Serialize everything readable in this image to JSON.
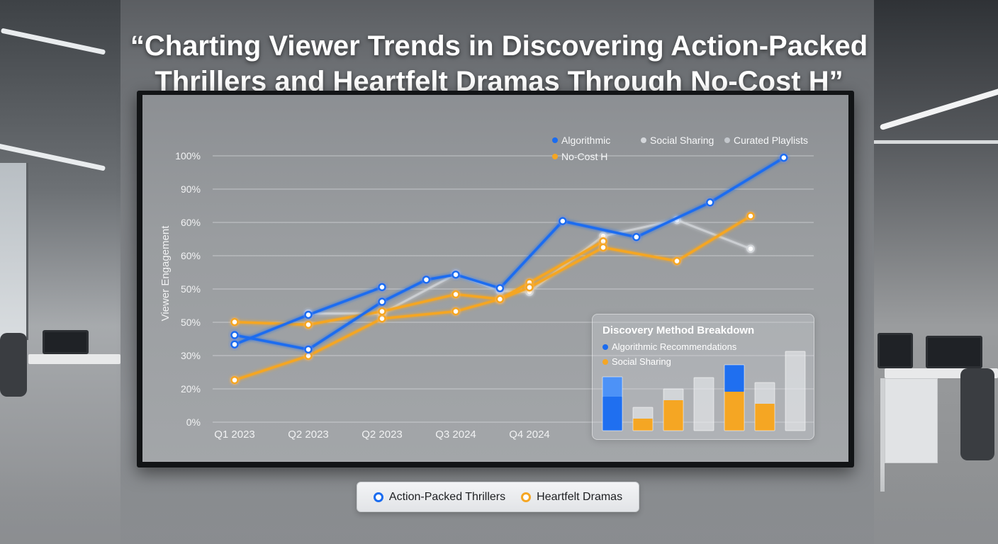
{
  "title_line1": "“Charting Viewer Trends in Discovering Action-Packed",
  "title_line2": "Thrillers and Heartfelt Dramas Through No-Cost H”",
  "colors": {
    "blue": "#1a6cf0",
    "orange": "#f5a623",
    "gray": "#d4d7db",
    "light_gray": "#c3c7cc"
  },
  "chart_data": {
    "type": "line",
    "ylabel": "Viewer Engagement",
    "ytick_labels": [
      "0%",
      "20%",
      "30%",
      "50%",
      "50%",
      "60%",
      "60%",
      "90%",
      "100%"
    ],
    "xtick_labels": [
      "Q1 2023",
      "Q2 2023",
      "Q2 2023",
      "Q3 2024",
      "Q4 2024"
    ],
    "grid": true,
    "legend_top": [
      "Algorithmic",
      "Social Sharing",
      "Curated Playlists",
      "No-Cost H"
    ],
    "series": [
      {
        "name": "Algorithmic",
        "color": "#1a6cf0",
        "points": [
          [
            0,
            32.7
          ],
          [
            1,
            27.3
          ],
          [
            2,
            45.2
          ],
          [
            2.6,
            53.5
          ],
          [
            3,
            55.4
          ],
          [
            3.6,
            50.3
          ],
          [
            4.45,
            75.5
          ],
          [
            5.45,
            69.5
          ],
          [
            6.45,
            82.5
          ],
          [
            7.45,
            99.3
          ]
        ]
      },
      {
        "name": "Action-Packed Thrillers",
        "color": "#1a6cf0",
        "points": [
          [
            0,
            29.2
          ],
          [
            1,
            40.3
          ],
          [
            2,
            50.7
          ]
        ]
      },
      {
        "name": "Social Sharing",
        "color": "#d4d7db",
        "points": [
          [
            1,
            40.8
          ],
          [
            2,
            40.8
          ],
          [
            3,
            55.6
          ],
          [
            3.6,
            49.3
          ],
          [
            4,
            48.9
          ],
          [
            5,
            69.9
          ],
          [
            6,
            75.9
          ],
          [
            7,
            65.1
          ]
        ]
      },
      {
        "name": "No-Cost H",
        "color": "#f5a623",
        "points": [
          [
            0,
            37.6
          ],
          [
            1,
            36.6
          ],
          [
            2,
            41.6
          ],
          [
            3,
            48.0
          ],
          [
            3.6,
            46.2
          ],
          [
            4,
            50.6
          ],
          [
            5,
            65.6
          ],
          [
            6,
            60.5
          ],
          [
            7,
            77.4
          ]
        ]
      },
      {
        "name": "Heartfelt Dramas",
        "color": "#f5a623",
        "points": [
          [
            0,
            15.8
          ],
          [
            1,
            24.9
          ],
          [
            2,
            38.9
          ],
          [
            3,
            41.6
          ],
          [
            3.6,
            46.2
          ],
          [
            4,
            52.4
          ],
          [
            5,
            67.9
          ]
        ]
      }
    ],
    "inset": {
      "title": "Discovery Method Breakdown",
      "legend": [
        "Algorithmic Recommendations",
        "Social Sharing"
      ],
      "bars": [
        {
          "total": 76,
          "split": 48,
          "bottom": "blue",
          "top": "blue-light"
        },
        {
          "total": 33,
          "split": 17,
          "bottom": "orange",
          "top": "light"
        },
        {
          "total": 59,
          "split": 43,
          "bottom": "orange",
          "top": "light"
        },
        {
          "total": 75,
          "split": 60,
          "bottom": "light",
          "top": "light"
        },
        {
          "total": 93,
          "split": 55,
          "bottom": "orange",
          "top": "blue"
        },
        {
          "total": 68,
          "split": 38,
          "bottom": "orange",
          "top": "light"
        },
        {
          "total": 112,
          "split": 112,
          "bottom": "light",
          "top": "light"
        }
      ]
    }
  },
  "bottom_legend": [
    "Action-Packed Thrillers",
    "Heartfelt Dramas"
  ]
}
